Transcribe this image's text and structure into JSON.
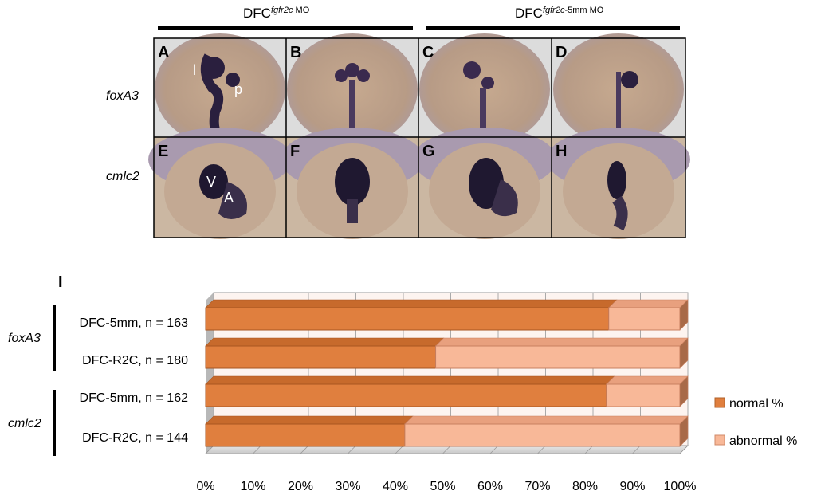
{
  "figure": {
    "headers": [
      {
        "base": "DFC",
        "sup_italic": "fgfr2c",
        "sup_normal": " MO"
      },
      {
        "base": "DFC",
        "sup_italic": "fgfr2c",
        "sup_normal": "-5mm  MO"
      }
    ],
    "panel_letters": [
      "A",
      "B",
      "C",
      "D",
      "E",
      "F",
      "G",
      "H"
    ],
    "row_labels": [
      "foxA3",
      "cmlc2"
    ],
    "inset_labels": {
      "A": [
        "l",
        "p"
      ],
      "E": [
        "V",
        "A"
      ]
    },
    "chart_label": "I",
    "group_labels": [
      "foxA3",
      "cmlc2"
    ]
  },
  "chart_data": {
    "type": "bar",
    "orientation": "horizontal",
    "stacked": true,
    "percent": true,
    "categories": [
      "DFC-5mm, n = 163",
      "DFC-R2C, n = 180",
      "DFC-5mm, n = 162",
      "DFC-R2C, n = 144"
    ],
    "series": [
      {
        "name": "normal %",
        "values": [
          85,
          48.5,
          84.5,
          42
        ]
      },
      {
        "name": "abnormal %",
        "values": [
          15,
          51.5,
          15.5,
          58
        ]
      }
    ],
    "xlim": [
      0,
      100
    ],
    "xticks": [
      "0%",
      "10%",
      "20%",
      "30%",
      "40%",
      "50%",
      "60%",
      "70%",
      "80%",
      "90%",
      "100%"
    ],
    "grid": true,
    "legend_position": "right",
    "colors": {
      "normal": "#e07f3e",
      "abnormal": "#f8b898"
    }
  }
}
